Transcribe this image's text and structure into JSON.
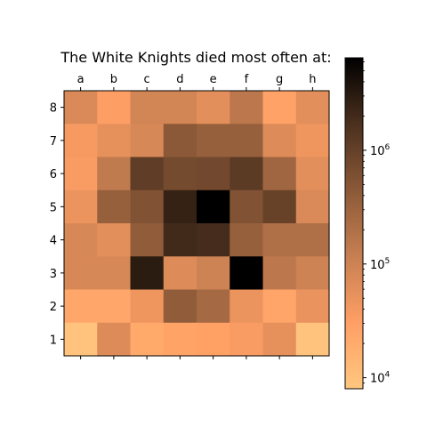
{
  "chart_data": {
    "type": "heatmap",
    "title": "The White Knights died most often at:",
    "x_tick_labels": [
      "a",
      "b",
      "c",
      "d",
      "e",
      "f",
      "g",
      "h"
    ],
    "y_tick_labels": [
      "8",
      "7",
      "6",
      "5",
      "4",
      "3",
      "2",
      "1"
    ],
    "colormap": "copper_r",
    "color_scale": "log",
    "color_range": [
      8000,
      6500000
    ],
    "colorbar_ticks": [
      {
        "value": 10000,
        "base": "10",
        "exp": "4"
      },
      {
        "value": 100000,
        "base": "10",
        "exp": "5"
      },
      {
        "value": 1000000,
        "base": "10",
        "exp": "6"
      }
    ],
    "rows": [
      [
        75000,
        32000,
        90000,
        90000,
        60000,
        150000,
        28000,
        60000
      ],
      [
        38000,
        55000,
        80000,
        450000,
        350000,
        350000,
        70000,
        45000
      ],
      [
        35000,
        140000,
        1100000,
        700000,
        750000,
        1200000,
        280000,
        60000
      ],
      [
        48000,
        350000,
        550000,
        2500000,
        6500000,
        550000,
        950000,
        75000
      ],
      [
        80000,
        60000,
        400000,
        2000000,
        1900000,
        350000,
        200000,
        200000
      ],
      [
        80000,
        80000,
        3000000,
        70000,
        100000,
        6500000,
        150000,
        100000
      ],
      [
        24000,
        24000,
        45000,
        400000,
        250000,
        48000,
        25000,
        50000
      ],
      [
        9000,
        70000,
        22000,
        27000,
        30000,
        35000,
        55000,
        9000
      ]
    ]
  }
}
